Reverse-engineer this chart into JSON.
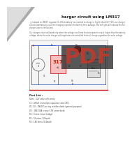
{
  "bg_color": "#ffffff",
  "page_bg": "#e8e8e8",
  "title": "harger circuit using LM317",
  "body1": "  g is based on LM317 regulator IC. When battery has reached to charge to higher than 6V (7.5V), our charger circuit automatically cuts the charging to protect the battery from damage. The red light will indicate the full charge state to the battery.",
  "body2": "Our charger circuit will work only when the voltage level from the solar panel is much higher than the battery voltage, where the solar charger will negotiate and controlled them all charge regardless the solar voltage.",
  "parts_title": "Part List :",
  "parts": [
    "Solar : 12V solar cells array",
    "C1 : 470uF electrolytic capacitor rated 25V",
    "D1, D2 : 1N4001 or any rectifier diode (general purpose)",
    "D3 : 1N4733A or any 3.9V zener diode",
    "R1 : 0 ohm (short bridge)",
    "R2 : 56 ohms (1/4watt)",
    "R3 : 180 ohms (1/4watt)"
  ],
  "pdf_color": "#c0392b",
  "circuit_line_color": "#2244aa",
  "ic_fill": "#f5c0c0",
  "ic_text": "#cc2200",
  "led_color": "#dd2222",
  "wire_color": "#2255cc"
}
